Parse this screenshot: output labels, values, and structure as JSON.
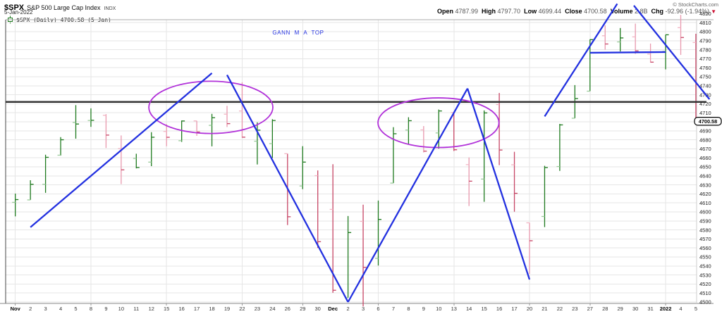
{
  "header": {
    "symbol": "$SPX",
    "name": "S&P 500 Large Cap Index",
    "exchange": "INDX",
    "date": "5-Jan-2022",
    "credit": "© StockCharts.com",
    "quote": {
      "fields": [
        {
          "label": "Open",
          "value": "4787.99"
        },
        {
          "label": "High",
          "value": "4797.70"
        },
        {
          "label": "Low",
          "value": "4699.44"
        },
        {
          "label": "Close",
          "value": "4700.58"
        },
        {
          "label": "Volume",
          "value": "2.8B"
        },
        {
          "label": "Chg",
          "value": "-92.96 (-1.94%)"
        }
      ],
      "arrow": "▼"
    }
  },
  "plot_label": {
    "text": "$SPX (Daily) 4700.58 (5 Jan)"
  },
  "chart_data": {
    "type": "ohlc-bar",
    "title": "$SPX Daily",
    "ylim": [
      4500,
      4820
    ],
    "y_tick_step": 10,
    "grid": true,
    "last_close_badge": "4700.58",
    "bold_x_labels": [
      "Nov",
      "Dec",
      "2022"
    ],
    "monday_indices": [
      0,
      5,
      10,
      15,
      19,
      24,
      29,
      34,
      38,
      43
    ],
    "bars": [
      {
        "date": "Nov 1",
        "label": "Nov",
        "o": 4610.62,
        "h": 4620.34,
        "l": 4595.06,
        "c": 4613.67,
        "dir": "up",
        "shade": "dark"
      },
      {
        "date": "Nov 2",
        "label": "2",
        "o": 4613.34,
        "h": 4635.15,
        "l": 4613.34,
        "c": 4630.65,
        "dir": "up",
        "shade": "dark"
      },
      {
        "date": "Nov 3",
        "label": "3",
        "o": 4630.65,
        "h": 4663.46,
        "l": 4621.19,
        "c": 4660.57,
        "dir": "up",
        "shade": "dark"
      },
      {
        "date": "Nov 4",
        "label": "4",
        "o": 4662.93,
        "h": 4683.0,
        "l": 4662.59,
        "c": 4680.06,
        "dir": "up",
        "shade": "dark"
      },
      {
        "date": "Nov 5",
        "label": "5",
        "o": 4699.26,
        "h": 4718.5,
        "l": 4681.32,
        "c": 4697.53,
        "dir": "up",
        "shade": "dark"
      },
      {
        "date": "Nov 8",
        "label": "8",
        "o": 4701.48,
        "h": 4714.92,
        "l": 4694.39,
        "c": 4701.7,
        "dir": "up",
        "shade": "dark"
      },
      {
        "date": "Nov 9",
        "label": "9",
        "o": 4707.25,
        "h": 4708.53,
        "l": 4670.87,
        "c": 4685.25,
        "dir": "down",
        "shade": "light"
      },
      {
        "date": "Nov 10",
        "label": "10",
        "o": 4670.26,
        "h": 4684.85,
        "l": 4630.86,
        "c": 4646.71,
        "dir": "down",
        "shade": "light"
      },
      {
        "date": "Nov 11",
        "label": "11",
        "o": 4659.39,
        "h": 4664.55,
        "l": 4648.31,
        "c": 4649.27,
        "dir": "up",
        "shade": "dark"
      },
      {
        "date": "Nov 12",
        "label": "12",
        "o": 4655.24,
        "h": 4688.47,
        "l": 4650.77,
        "c": 4682.85,
        "dir": "up",
        "shade": "dark"
      },
      {
        "date": "Nov 15",
        "label": "15",
        "o": 4689.3,
        "h": 4697.42,
        "l": 4672.86,
        "c": 4682.8,
        "dir": "down",
        "shade": "light"
      },
      {
        "date": "Nov 16",
        "label": "16",
        "o": 4679.0,
        "h": 4701.39,
        "l": 4677.7,
        "c": 4700.9,
        "dir": "up",
        "shade": "dark"
      },
      {
        "date": "Nov 17",
        "label": "17",
        "o": 4701.0,
        "h": 4701.0,
        "l": 4684.41,
        "c": 4688.67,
        "dir": "down",
        "shade": "light"
      },
      {
        "date": "Nov 18",
        "label": "18",
        "o": 4696.06,
        "h": 4708.8,
        "l": 4672.78,
        "c": 4704.54,
        "dir": "up",
        "shade": "dark"
      },
      {
        "date": "Nov 19",
        "label": "19",
        "o": 4708.44,
        "h": 4717.75,
        "l": 4694.22,
        "c": 4697.96,
        "dir": "down",
        "shade": "light"
      },
      {
        "date": "Nov 22",
        "label": "22",
        "o": 4712.0,
        "h": 4743.83,
        "l": 4682.17,
        "c": 4682.94,
        "dir": "down",
        "shade": "light"
      },
      {
        "date": "Nov 23",
        "label": "23",
        "o": 4678.48,
        "h": 4699.39,
        "l": 4652.66,
        "c": 4690.7,
        "dir": "up",
        "shade": "dark"
      },
      {
        "date": "Nov 24",
        "label": "24",
        "o": 4675.78,
        "h": 4702.87,
        "l": 4659.89,
        "c": 4701.46,
        "dir": "up",
        "shade": "dark"
      },
      {
        "date": "Nov 26",
        "label": "26",
        "o": 4664.63,
        "h": 4664.63,
        "l": 4585.43,
        "c": 4594.62,
        "dir": "down",
        "shade": "dark"
      },
      {
        "date": "Nov 29",
        "label": "29",
        "o": 4628.75,
        "h": 4672.95,
        "l": 4625.26,
        "c": 4655.27,
        "dir": "up",
        "shade": "dark"
      },
      {
        "date": "Nov 30",
        "label": "30",
        "o": 4640.25,
        "h": 4646.02,
        "l": 4560.0,
        "c": 4567.0,
        "dir": "down",
        "shade": "dark"
      },
      {
        "date": "Dec 1",
        "label": "Dec",
        "o": 4602.82,
        "h": 4652.94,
        "l": 4510.27,
        "c": 4513.04,
        "dir": "down",
        "shade": "dark"
      },
      {
        "date": "Dec 2",
        "label": "2",
        "o": 4504.73,
        "h": 4595.46,
        "l": 4504.73,
        "c": 4577.1,
        "dir": "up",
        "shade": "dark"
      },
      {
        "date": "Dec 3",
        "label": "3",
        "o": 4589.49,
        "h": 4608.03,
        "l": 4495.12,
        "c": 4538.43,
        "dir": "down",
        "shade": "dark"
      },
      {
        "date": "Dec 6",
        "label": "6",
        "o": 4548.37,
        "h": 4612.6,
        "l": 4540.51,
        "c": 4591.67,
        "dir": "up",
        "shade": "dark"
      },
      {
        "date": "Dec 7",
        "label": "7",
        "o": 4631.97,
        "h": 4694.04,
        "l": 4631.97,
        "c": 4686.75,
        "dir": "up",
        "shade": "dark"
      },
      {
        "date": "Dec 8",
        "label": "8",
        "o": 4690.87,
        "h": 4705.06,
        "l": 4674.52,
        "c": 4701.21,
        "dir": "up",
        "shade": "dark"
      },
      {
        "date": "Dec 9",
        "label": "9",
        "o": 4691.0,
        "h": 4695.26,
        "l": 4665.98,
        "c": 4667.45,
        "dir": "down",
        "shade": "light"
      },
      {
        "date": "Dec 10",
        "label": "10",
        "o": 4687.64,
        "h": 4713.57,
        "l": 4670.24,
        "c": 4712.02,
        "dir": "up",
        "shade": "dark"
      },
      {
        "date": "Dec 13",
        "label": "13",
        "o": 4710.3,
        "h": 4710.3,
        "l": 4667.6,
        "c": 4668.97,
        "dir": "down",
        "shade": "dark"
      },
      {
        "date": "Dec 14",
        "label": "14",
        "o": 4652.5,
        "h": 4660.47,
        "l": 4606.52,
        "c": 4634.09,
        "dir": "down",
        "shade": "light"
      },
      {
        "date": "Dec 15",
        "label": "15",
        "o": 4636.46,
        "h": 4712.6,
        "l": 4611.22,
        "c": 4709.85,
        "dir": "up",
        "shade": "dark"
      },
      {
        "date": "Dec 16",
        "label": "16",
        "o": 4719.13,
        "h": 4731.99,
        "l": 4651.89,
        "c": 4668.67,
        "dir": "down",
        "shade": "dark"
      },
      {
        "date": "Dec 17",
        "label": "17",
        "o": 4652.27,
        "h": 4666.7,
        "l": 4600.22,
        "c": 4620.64,
        "dir": "down",
        "shade": "dark"
      },
      {
        "date": "Dec 20",
        "label": "20",
        "o": 4587.9,
        "h": 4587.9,
        "l": 4531.1,
        "c": 4568.02,
        "dir": "down",
        "shade": "light"
      },
      {
        "date": "Dec 21",
        "label": "21",
        "o": 4594.96,
        "h": 4651.14,
        "l": 4583.16,
        "c": 4649.23,
        "dir": "up",
        "shade": "dark"
      },
      {
        "date": "Dec 22",
        "label": "22",
        "o": 4650.36,
        "h": 4697.67,
        "l": 4645.53,
        "c": 4696.56,
        "dir": "up",
        "shade": "dark"
      },
      {
        "date": "Dec 23",
        "label": "23",
        "o": 4703.96,
        "h": 4740.74,
        "l": 4703.96,
        "c": 4725.79,
        "dir": "up",
        "shade": "dark"
      },
      {
        "date": "Dec 27",
        "label": "27",
        "o": 4733.99,
        "h": 4791.49,
        "l": 4733.99,
        "c": 4791.19,
        "dir": "up",
        "shade": "dark"
      },
      {
        "date": "Dec 28",
        "label": "28",
        "o": 4795.49,
        "h": 4807.02,
        "l": 4780.04,
        "c": 4786.35,
        "dir": "down",
        "shade": "light"
      },
      {
        "date": "Dec 29",
        "label": "29",
        "o": 4788.64,
        "h": 4804.06,
        "l": 4778.08,
        "c": 4793.06,
        "dir": "up",
        "shade": "dark"
      },
      {
        "date": "Dec 30",
        "label": "30",
        "o": 4794.23,
        "h": 4808.93,
        "l": 4775.33,
        "c": 4778.73,
        "dir": "down",
        "shade": "light"
      },
      {
        "date": "Dec 31",
        "label": "31",
        "o": 4775.21,
        "h": 4786.83,
        "l": 4765.75,
        "c": 4766.18,
        "dir": "down",
        "shade": "light"
      },
      {
        "date": "Jan 3",
        "label": "2022",
        "o": 4778.14,
        "h": 4796.64,
        "l": 4758.17,
        "c": 4796.56,
        "dir": "up",
        "shade": "dark"
      },
      {
        "date": "Jan 4",
        "label": "4",
        "o": 4804.51,
        "h": 4818.62,
        "l": 4774.27,
        "c": 4793.54,
        "dir": "down",
        "shade": "light"
      },
      {
        "date": "Jan 5",
        "label": "5",
        "o": 4787.99,
        "h": 4797.7,
        "l": 4699.44,
        "c": 4700.58,
        "dir": "down",
        "shade": "dark"
      }
    ],
    "annotations": {
      "black_hline_price": 4722,
      "blue_hline": {
        "price": 4777,
        "i1": 38.0,
        "i2": 43.0
      },
      "trendlines": [
        {
          "i1": 1.0,
          "p1": 4583,
          "i2": 13.0,
          "p2": 4754
        },
        {
          "i1": 14.0,
          "p1": 4752,
          "i2": 22.0,
          "p2": 4500
        },
        {
          "i1": 22.0,
          "p1": 4500,
          "i2": 29.9,
          "p2": 4737
        },
        {
          "i1": 29.9,
          "p1": 4737,
          "i2": 34.0,
          "p2": 4525
        },
        {
          "i1": 35.0,
          "p1": 4706,
          "i2": 39.8,
          "p2": 4831
        },
        {
          "i1": 40.9,
          "p1": 4829,
          "i2": 45.9,
          "p2": 4725
        }
      ],
      "ellipses": [
        {
          "ci": 12.93,
          "cp": 4716,
          "ri": 4.1,
          "rp": 29.0
        },
        {
          "ci": 27.98,
          "cp": 4699,
          "ri": 4.0,
          "rp": 27.5
        }
      ],
      "label": {
        "text": "GANN M A TOP",
        "i": 17.0,
        "p": 4797
      }
    },
    "colors": {
      "up": "#1e7a1e",
      "up_open_tick": "#9ccc9c",
      "down": "#c74565",
      "down_light": "#e898ad",
      "down_open_tick": "#f2b6c4",
      "blue": "#2331e0",
      "purple": "#b131d9",
      "black_line": "#333333",
      "grid": "#e6e6e6"
    }
  }
}
